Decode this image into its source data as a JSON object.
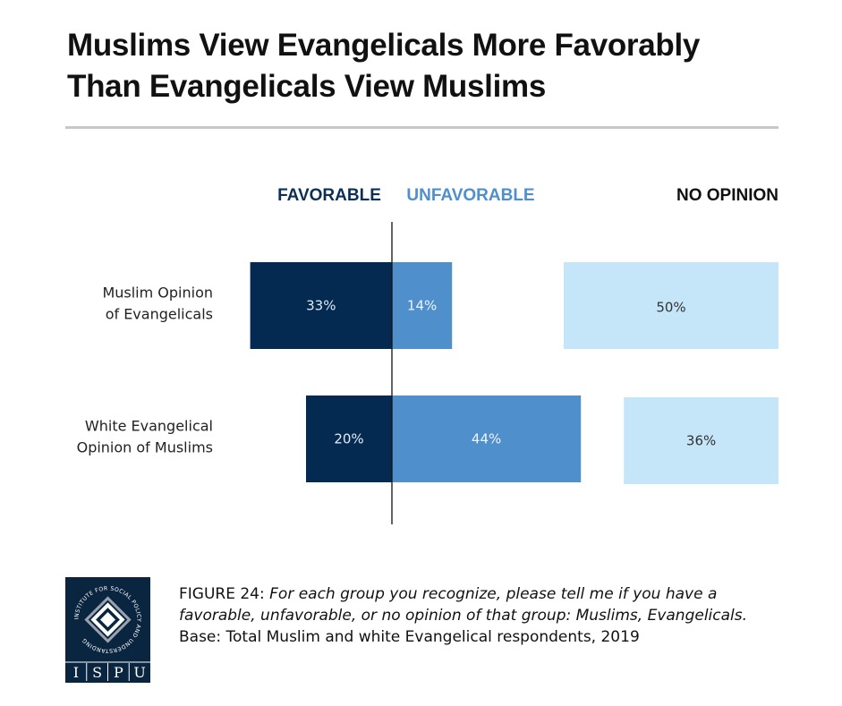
{
  "title": {
    "line1": "Muslims View Evangelicals More Favorably",
    "line2": "Than Evangelicals View Muslims"
  },
  "chart_data": {
    "type": "bar",
    "layout": "diverging-stacked-horizontal",
    "categories": [
      [
        "Muslim Opinion",
        "of Evangelicals"
      ],
      [
        "White Evangelical",
        "Opinion of Muslims"
      ]
    ],
    "series": [
      {
        "name": "FAVORABLE",
        "values": [
          33,
          20
        ],
        "color": "#042a52",
        "label_color": "#e3eaf2"
      },
      {
        "name": "UNFAVORABLE",
        "values": [
          14,
          44
        ],
        "color": "#4f8fcc",
        "label_color": "#eef4fb"
      },
      {
        "name": "NO OPINION",
        "values": [
          50,
          36
        ],
        "color": "#c5e6f8",
        "label_color": "#333333"
      }
    ],
    "legend_colors": [
      "#0b2f57",
      "#4f8fcc",
      "#111111"
    ],
    "value_suffix": "%",
    "xlim": [
      -33,
      50
    ]
  },
  "footer": {
    "figure_label": "FIGURE 24",
    "question": "For each group you recognize, please tell me if you have a favorable, unfavorable, or no opinion of that group: Muslims, Evangelicals.",
    "base": "Base: Total Muslim and white Evangelical respondents, 2019",
    "logo_text": "ISPU",
    "logo_ring_text": "INSTITUTE FOR SOCIAL POLICY AND UNDERSTANDING",
    "logo_letters": [
      "I",
      "S",
      "P",
      "U"
    ]
  }
}
